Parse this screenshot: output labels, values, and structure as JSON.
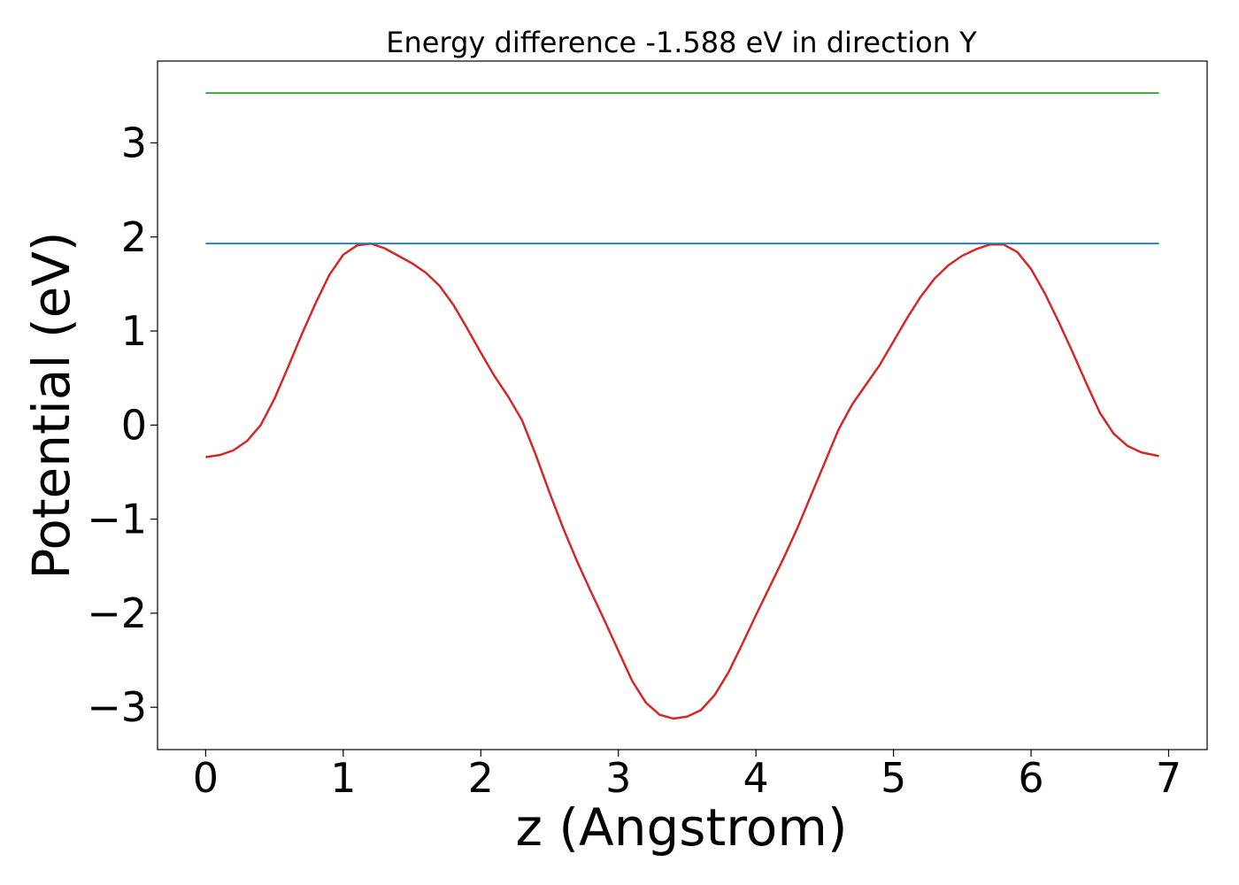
{
  "chart_data": {
    "type": "line",
    "title": "Energy difference -1.588 eV in direction Y",
    "xlabel": "z (Angstrom)",
    "ylabel": "Potential (eV)",
    "xlim": [
      -0.35,
      7.28
    ],
    "ylim": [
      -3.45,
      3.87
    ],
    "xticks": [
      0,
      1,
      2,
      3,
      4,
      5,
      6,
      7
    ],
    "xtick_labels": [
      "0",
      "1",
      "2",
      "3",
      "4",
      "5",
      "6",
      "7"
    ],
    "yticks": [
      -3,
      -2,
      -1,
      0,
      1,
      2,
      3
    ],
    "ytick_labels": [
      "−3",
      "−2",
      "−1",
      "0",
      "1",
      "2",
      "3"
    ],
    "grid": false,
    "series": [
      {
        "color": "#d62728",
        "x": [
          0,
          0.1,
          0.2,
          0.3,
          0.4,
          0.5,
          0.6,
          0.7,
          0.8,
          0.9,
          1.0,
          1.1,
          1.2,
          1.3,
          1.4,
          1.5,
          1.6,
          1.7,
          1.8,
          1.9,
          2.0,
          2.1,
          2.2,
          2.3,
          2.4,
          2.5,
          2.6,
          2.7,
          2.8,
          2.9,
          3.0,
          3.1,
          3.2,
          3.3,
          3.4,
          3.5,
          3.6,
          3.7,
          3.8,
          3.9,
          4.0,
          4.1,
          4.2,
          4.3,
          4.4,
          4.5,
          4.6,
          4.7,
          4.8,
          4.9,
          5.0,
          5.1,
          5.2,
          5.3,
          5.4,
          5.5,
          5.6,
          5.7,
          5.8,
          5.9,
          6.0,
          6.1,
          6.2,
          6.3,
          6.4,
          6.5,
          6.6,
          6.7,
          6.8,
          6.93
        ],
        "y": [
          -0.34,
          -0.32,
          -0.27,
          -0.17,
          0.0,
          0.28,
          0.62,
          0.97,
          1.3,
          1.6,
          1.81,
          1.91,
          1.93,
          1.88,
          1.8,
          1.72,
          1.62,
          1.48,
          1.28,
          1.03,
          0.77,
          0.52,
          0.3,
          0.05,
          -0.32,
          -0.72,
          -1.1,
          -1.45,
          -1.77,
          -2.08,
          -2.4,
          -2.72,
          -2.95,
          -3.08,
          -3.12,
          -3.1,
          -3.03,
          -2.87,
          -2.63,
          -2.33,
          -2.02,
          -1.72,
          -1.42,
          -1.1,
          -0.75,
          -0.4,
          -0.05,
          0.22,
          0.43,
          0.64,
          0.89,
          1.14,
          1.37,
          1.56,
          1.7,
          1.8,
          1.87,
          1.92,
          1.92,
          1.84,
          1.66,
          1.4,
          1.1,
          0.78,
          0.45,
          0.13,
          -0.09,
          -0.22,
          -0.29,
          -0.33
        ]
      },
      {
        "color": "#1f77b4",
        "x": [
          0,
          6.93
        ],
        "y": [
          1.93,
          1.93
        ]
      },
      {
        "color": "#2ca02c",
        "x": [
          0,
          6.93
        ],
        "y": [
          3.53,
          3.53
        ]
      }
    ]
  }
}
